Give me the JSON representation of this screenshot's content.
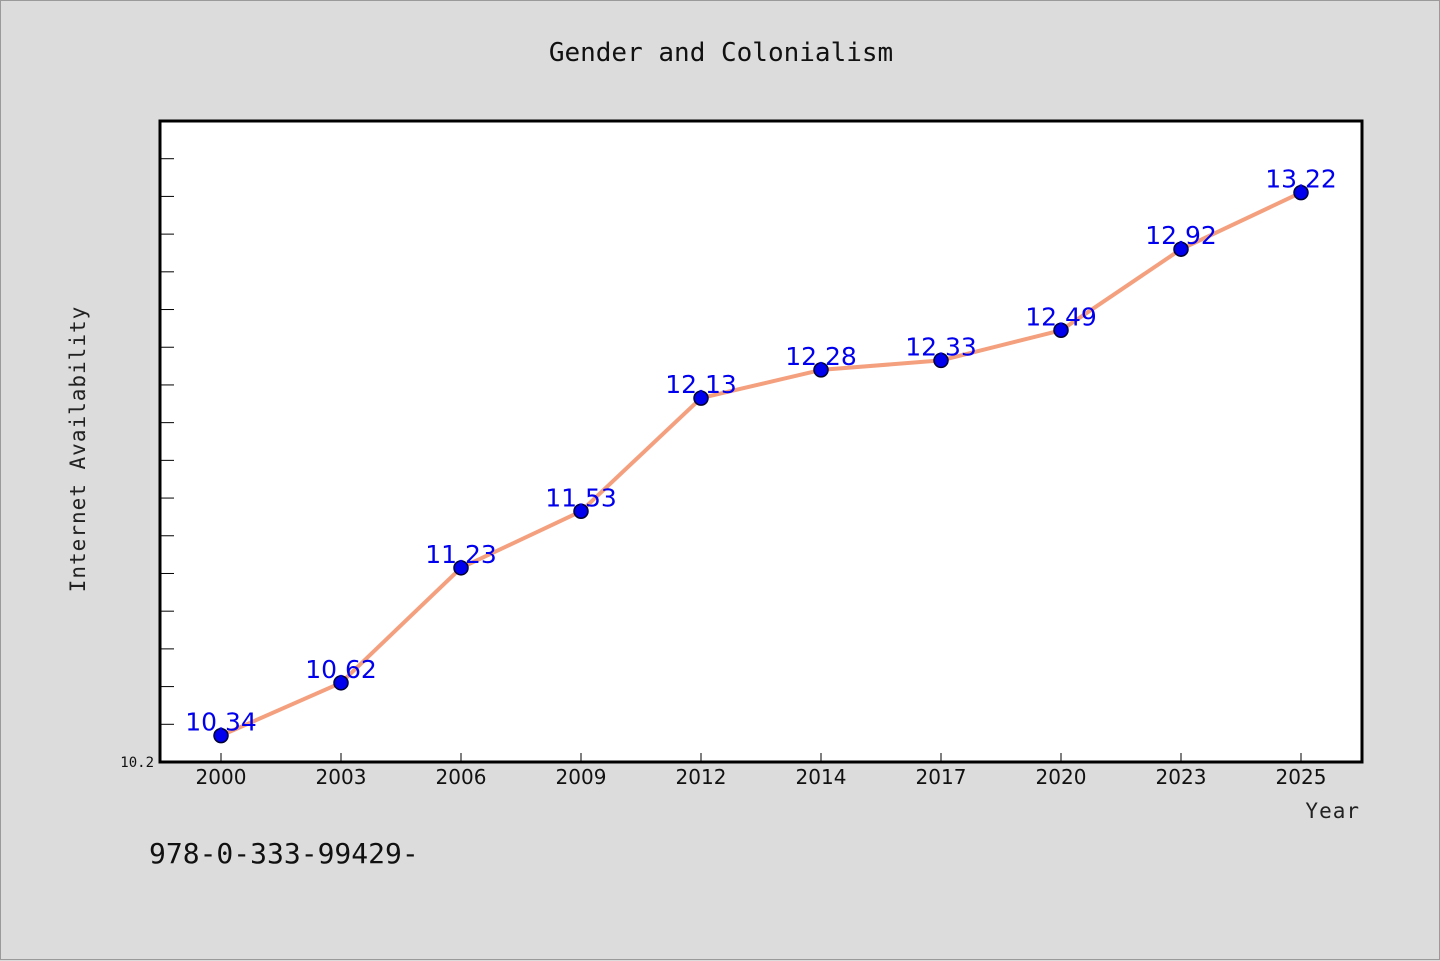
{
  "chart_data": {
    "type": "line",
    "title": "Gender and Colonialism",
    "xlabel": "Year",
    "ylabel": "Internet Availability",
    "categories": [
      "2000",
      "2003",
      "2006",
      "2009",
      "2012",
      "2014",
      "2017",
      "2020",
      "2023",
      "2025"
    ],
    "series": [
      {
        "values": [
          10.34,
          10.62,
          11.23,
          11.53,
          12.13,
          12.28,
          12.33,
          12.49,
          12.92,
          13.22
        ],
        "labels": [
          "10.34",
          "10.62",
          "11.23",
          "11.53",
          "12.13",
          "12.28",
          "12.33",
          "12.49",
          "12.92",
          "13.22"
        ]
      }
    ],
    "ylim": [
      10.2,
      13.6
    ],
    "y_tick_labels": [
      "10.2"
    ],
    "grid": false,
    "legend": "none",
    "colors": {
      "line": "#f4a07e",
      "marker": "#0000ee",
      "marker_edge": "#000033",
      "data_label": "#0000ee",
      "background": "#dcdcdc",
      "plot_background": "#ffffff"
    }
  },
  "annotation": "978-0-333-99429-"
}
